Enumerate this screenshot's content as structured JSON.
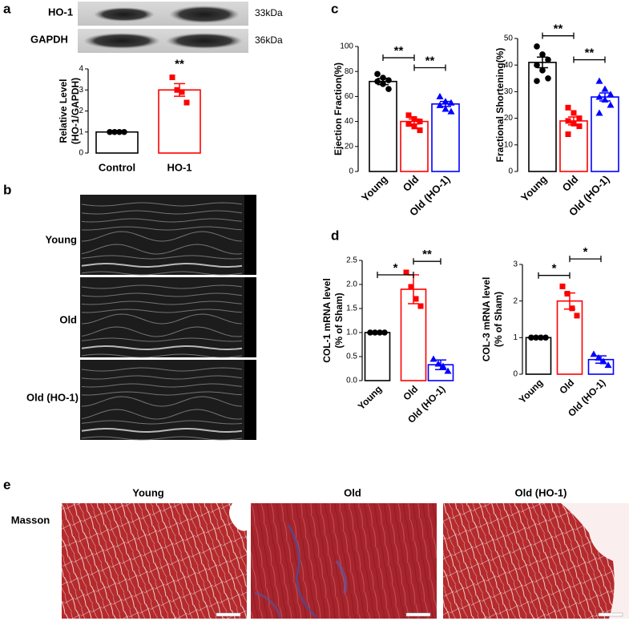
{
  "panel_labels": [
    "a",
    "b",
    "c",
    "d",
    "e"
  ],
  "blot": {
    "bands": [
      {
        "name": "HO-1",
        "size": "33kDa"
      },
      {
        "name": "GAPDH",
        "size": "36kDa"
      }
    ]
  },
  "echo": {
    "labels": [
      "Young",
      "Old",
      "Old (HO-1)"
    ]
  },
  "masson": {
    "row_label": "Masson",
    "columns": [
      "Young",
      "Old",
      "Old (HO-1)"
    ]
  },
  "chart_data": [
    {
      "type": "bar",
      "ylabel": [
        "Relative Level",
        "(HO-1/GAPDH)"
      ],
      "categories": [
        "Control",
        "HO-1"
      ],
      "values": [
        1.0,
        3.0
      ],
      "errors": [
        0,
        0.3
      ],
      "points": [
        [
          1,
          1,
          1,
          1
        ],
        [
          3.6,
          3.0,
          2.9,
          2.4
        ]
      ],
      "colors": [
        "#000000",
        "#ff0000"
      ],
      "markers": [
        "circle",
        "square"
      ],
      "ylim": [
        0,
        4
      ],
      "yticks": [
        0,
        1,
        2,
        3,
        4
      ],
      "annotations": [
        "**"
      ],
      "rotate_xticks": false
    },
    {
      "type": "bar",
      "ylabel": "Ejection Fraction(%)",
      "categories": [
        "Young",
        "Old",
        "Old (HO-1)"
      ],
      "values": [
        72,
        40,
        54
      ],
      "errors": [
        2.5,
        2,
        2
      ],
      "points": [
        [
          78,
          75,
          73,
          72,
          70,
          66
        ],
        [
          45,
          42,
          40,
          38,
          36,
          33
        ],
        [
          60,
          56,
          55,
          53,
          50,
          48
        ]
      ],
      "colors": [
        "#000000",
        "#ff0000",
        "#0000ff"
      ],
      "markers": [
        "circle",
        "square",
        "triangle"
      ],
      "ylim": [
        0,
        100
      ],
      "yticks": [
        0,
        20,
        40,
        60,
        80,
        100
      ],
      "annotations": [
        "**",
        "**"
      ],
      "rotate_xticks": true
    },
    {
      "type": "bar",
      "ylabel": "Fractional Shortening(%)",
      "categories": [
        "Young",
        "Old",
        "Old (HO-1)"
      ],
      "values": [
        41,
        19,
        28
      ],
      "errors": [
        2,
        1.5,
        1.5
      ],
      "points": [
        [
          47,
          44,
          42,
          40,
          38,
          35,
          34
        ],
        [
          24,
          22,
          20,
          19,
          18,
          17,
          14
        ],
        [
          34,
          31,
          29,
          28,
          27,
          25,
          22
        ]
      ],
      "colors": [
        "#000000",
        "#ff0000",
        "#0000ff"
      ],
      "markers": [
        "circle",
        "square",
        "triangle"
      ],
      "ylim": [
        0,
        50
      ],
      "yticks": [
        0,
        10,
        20,
        30,
        40,
        50
      ],
      "annotations": [
        "**",
        "**"
      ],
      "rotate_xticks": true
    },
    {
      "type": "bar",
      "ylabel": [
        "COL-1 mRNA level",
        "(% of Sham)"
      ],
      "categories": [
        "Young",
        "Old",
        "Old (HO-1)"
      ],
      "values": [
        1.0,
        1.9,
        0.33
      ],
      "errors": [
        0,
        0.3,
        0.1
      ],
      "points": [
        [
          1,
          1,
          1,
          1
        ],
        [
          2.25,
          1.95,
          1.7,
          1.55
        ],
        [
          0.45,
          0.35,
          0.3,
          0.2
        ]
      ],
      "colors": [
        "#000000",
        "#ff0000",
        "#0000ff"
      ],
      "markers": [
        "circle",
        "square",
        "triangle"
      ],
      "ylim": [
        0,
        2.5
      ],
      "yticks": [
        {
          "value": 0,
          "label": "0.0"
        },
        0.5,
        {
          "value": 1,
          "label": "1.0"
        },
        1.5,
        {
          "value": 2,
          "label": "2.0"
        },
        2.5
      ],
      "annotations": [
        "*",
        "**"
      ],
      "rotate_xticks": true
    },
    {
      "type": "bar",
      "ylabel": [
        "COL-3 mRNA level",
        "(% of Sham)"
      ],
      "categories": [
        "Young",
        "Old",
        "Old (HO-1)"
      ],
      "values": [
        1.0,
        2.0,
        0.4
      ],
      "errors": [
        0,
        0.22,
        0.1
      ],
      "points": [
        [
          1,
          1,
          1,
          1
        ],
        [
          2.4,
          2.2,
          1.8,
          1.6
        ],
        [
          0.55,
          0.45,
          0.35,
          0.25
        ]
      ],
      "colors": [
        "#000000",
        "#ff0000",
        "#0000ff"
      ],
      "markers": [
        "circle",
        "square",
        "triangle"
      ],
      "ylim": [
        0,
        3
      ],
      "yticks": [
        0,
        1,
        2,
        3
      ],
      "annotations": [
        "*",
        "*"
      ],
      "rotate_xticks": true
    }
  ]
}
